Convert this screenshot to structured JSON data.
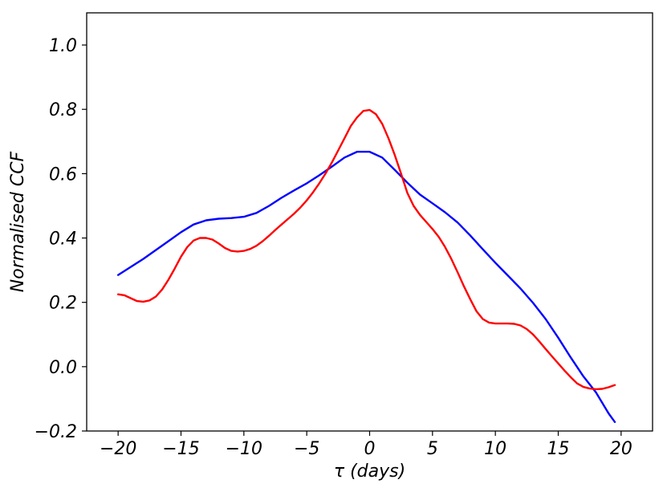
{
  "chart_data": {
    "type": "line",
    "xlabel": "τ (days)",
    "ylabel": "Normalised CCF",
    "xlim": [
      -22.5,
      22.5
    ],
    "ylim": [
      -0.2,
      1.1
    ],
    "xticks": [
      -20,
      -15,
      -10,
      -5,
      0,
      5,
      10,
      15,
      20
    ],
    "yticks": [
      -0.2,
      0.0,
      0.2,
      0.4,
      0.6,
      0.8,
      1.0
    ],
    "xtick_labels": [
      "−20",
      "−15",
      "−10",
      "−5",
      "0",
      "5",
      "10",
      "15",
      "20"
    ],
    "ytick_labels": [
      "−0.2",
      "0.0",
      "0.2",
      "0.4",
      "0.6",
      "0.8",
      "1.0"
    ],
    "grid": false,
    "series": [
      {
        "color": "#0000ff",
        "x": [
          -20,
          -18,
          -16,
          -15,
          -14,
          -13,
          -12,
          -11,
          -10,
          -9,
          -8,
          -7,
          -6,
          -5,
          -4,
          -3,
          -2,
          -1,
          0,
          1,
          2,
          3,
          4,
          5,
          6,
          7,
          8,
          9,
          10,
          11,
          12,
          13,
          14,
          15,
          16,
          17,
          18,
          19,
          19.5
        ],
        "y": [
          0.285,
          0.335,
          0.39,
          0.418,
          0.442,
          0.455,
          0.46,
          0.462,
          0.466,
          0.478,
          0.5,
          0.525,
          0.548,
          0.57,
          0.595,
          0.622,
          0.65,
          0.668,
          0.668,
          0.65,
          0.612,
          0.572,
          0.535,
          0.508,
          0.48,
          0.448,
          0.408,
          0.365,
          0.323,
          0.283,
          0.243,
          0.198,
          0.148,
          0.09,
          0.028,
          -0.03,
          -0.08,
          -0.145,
          -0.172
        ]
      },
      {
        "color": "#ff0000",
        "x": [
          -20,
          -19.5,
          -19,
          -18.5,
          -18,
          -17.5,
          -17,
          -16.5,
          -16,
          -15.5,
          -15,
          -14.5,
          -14,
          -13.5,
          -13,
          -12.5,
          -12,
          -11.5,
          -11,
          -10.5,
          -10,
          -9.5,
          -9,
          -8.5,
          -8,
          -7.5,
          -7,
          -6.5,
          -6,
          -5.5,
          -5,
          -4.5,
          -4,
          -3.5,
          -3,
          -2.5,
          -2,
          -1.5,
          -1,
          -0.5,
          0,
          0.5,
          1,
          1.5,
          2,
          2.5,
          3,
          3.5,
          4,
          4.5,
          5,
          5.5,
          6,
          6.5,
          7,
          7.5,
          8,
          8.5,
          9,
          9.5,
          10,
          10.5,
          11,
          11.5,
          12,
          12.5,
          13,
          13.5,
          14,
          14.5,
          15,
          15.5,
          16,
          16.5,
          17,
          17.5,
          18,
          18.5,
          19,
          19.5
        ],
        "y": [
          0.225,
          0.222,
          0.213,
          0.204,
          0.202,
          0.206,
          0.218,
          0.24,
          0.27,
          0.305,
          0.342,
          0.372,
          0.392,
          0.4,
          0.4,
          0.395,
          0.383,
          0.369,
          0.36,
          0.358,
          0.36,
          0.366,
          0.376,
          0.39,
          0.407,
          0.425,
          0.442,
          0.459,
          0.476,
          0.495,
          0.517,
          0.542,
          0.57,
          0.601,
          0.635,
          0.672,
          0.71,
          0.748,
          0.775,
          0.795,
          0.798,
          0.785,
          0.755,
          0.71,
          0.658,
          0.6,
          0.54,
          0.5,
          0.472,
          0.45,
          0.428,
          0.403,
          0.372,
          0.335,
          0.293,
          0.25,
          0.21,
          0.172,
          0.148,
          0.137,
          0.134,
          0.134,
          0.134,
          0.133,
          0.128,
          0.117,
          0.1,
          0.078,
          0.055,
          0.032,
          0.01,
          -0.012,
          -0.033,
          -0.052,
          -0.063,
          -0.068,
          -0.07,
          -0.069,
          -0.064,
          -0.057
        ]
      }
    ]
  }
}
